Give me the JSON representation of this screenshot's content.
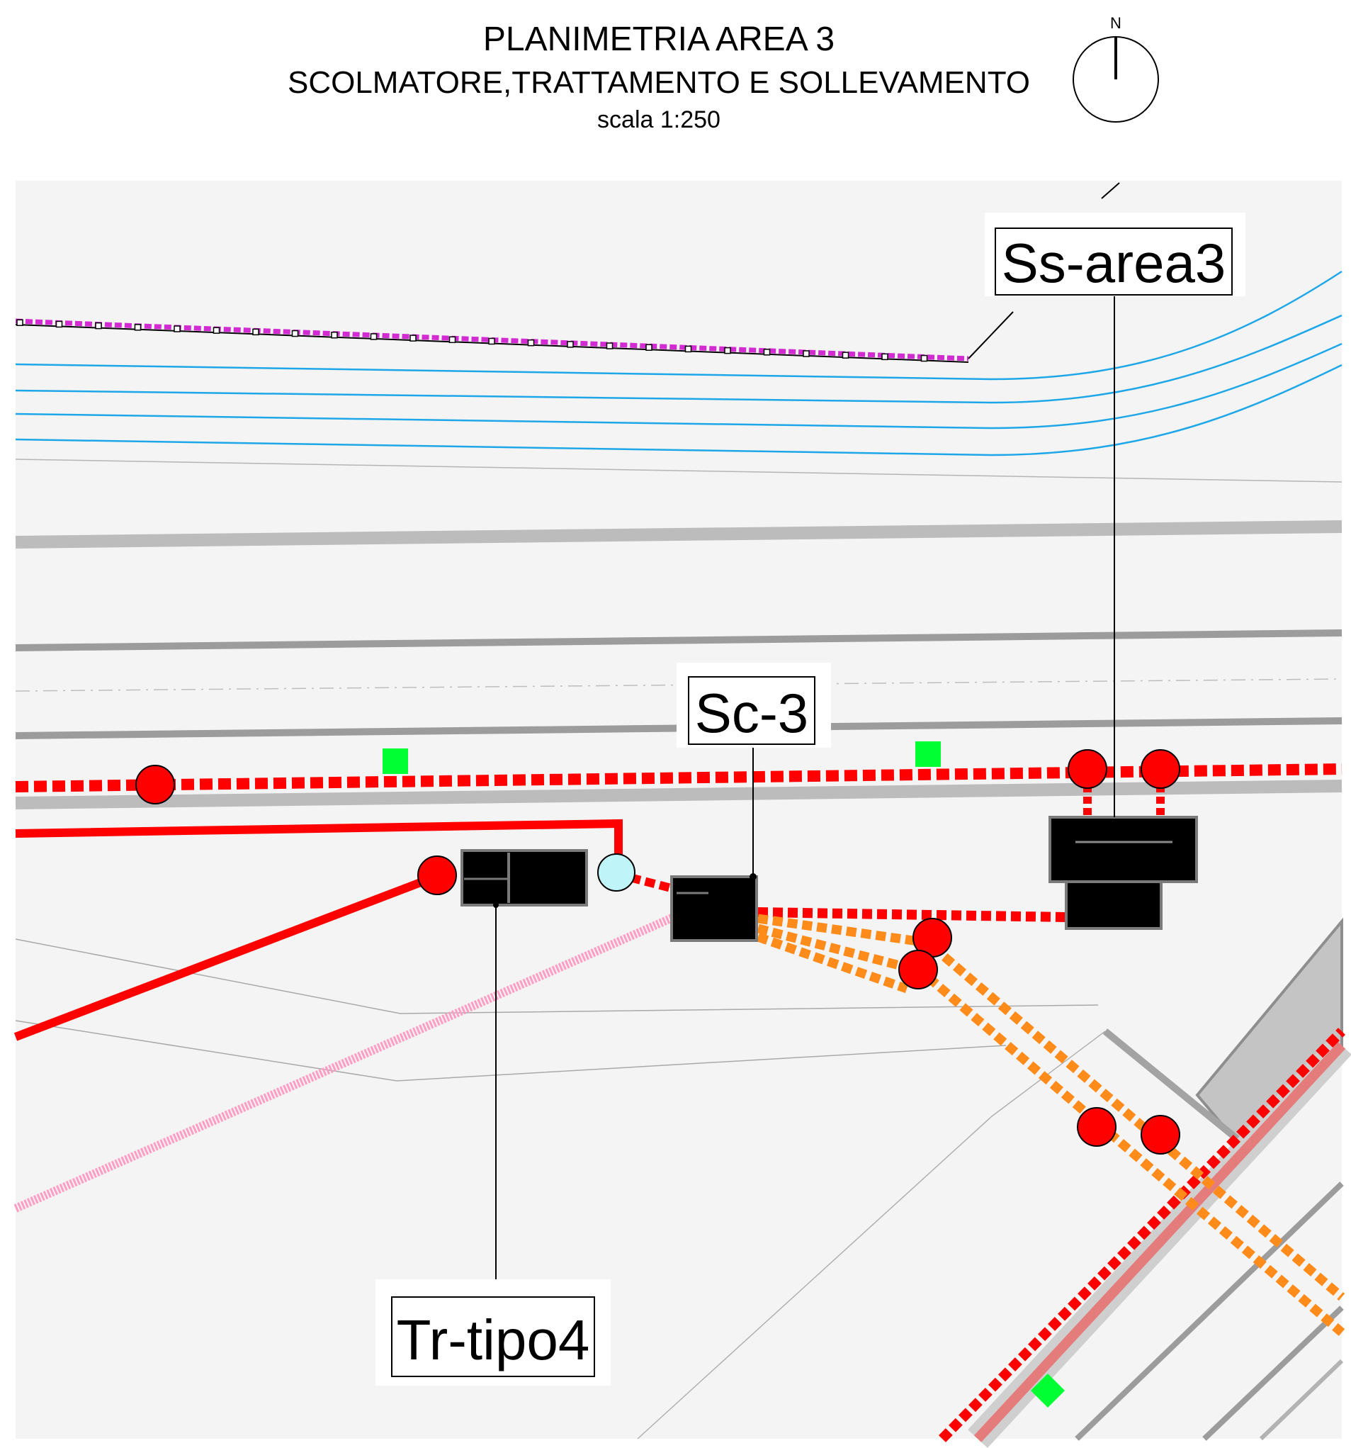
{
  "header": {
    "title": "PLANIMETRIA AREA 3",
    "subtitle": "SCOLMATORE,TRATTAMENTO E SOLLEVAMENTO",
    "scale": "scala 1:250"
  },
  "north_arrow": {
    "letter": "N"
  },
  "labels": {
    "ss_area3": "Ss-area3",
    "sc_3": "Sc-3",
    "tr_tipo4": "Tr-tipo4"
  },
  "colors": {
    "background": "#f4f4f4",
    "pipe_red": "#ff0000",
    "pipe_orange": "#ff8c1a",
    "pipe_pink": "#ff9ec4",
    "water_lines": "#1ea7e8",
    "fence_magenta": "#d22bd2",
    "road_gray": "#b8b8b8",
    "manhole_red": "#ff0000",
    "manhole_light_blue": "#bff4f8",
    "grate_green": "#00ff33",
    "structure_black": "#000000"
  }
}
